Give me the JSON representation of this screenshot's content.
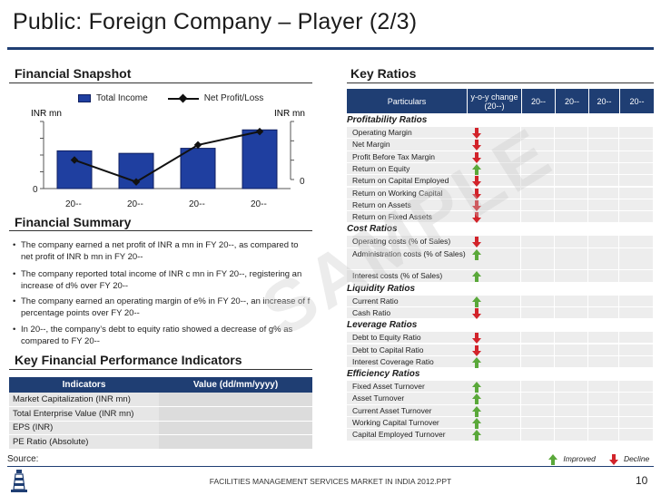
{
  "page": {
    "title": "Public: Foreign Company – Player (2/3)",
    "watermark": "SAMPLE",
    "source_label": "Source:",
    "footer": "FACILITIES MANAGEMENT SERVICES MARKET IN INDIA 2012.PPT",
    "page_number": "10"
  },
  "financial_snapshot": {
    "heading": "Financial Snapshot",
    "chart_data": {
      "type": "bar",
      "title": "",
      "categories": [
        "20--",
        "20--",
        "20--",
        "20--"
      ],
      "series": [
        {
          "name": "Total Income",
          "type": "bar",
          "values": [
            4.5,
            4.2,
            4.8,
            7.0
          ]
        },
        {
          "name": "Net Profit/Loss",
          "type": "line",
          "values": [
            1.2,
            -0.1,
            2.1,
            2.9
          ]
        }
      ],
      "ylabel_left": "INR mn",
      "ylabel_right": "INR mn",
      "left_tick_label": "0",
      "right_tick_label": "0",
      "ylim_left": [
        0,
        8
      ],
      "ylim_right": [
        -0.5,
        3.5
      ],
      "legend": "top",
      "grid": false,
      "colors": {
        "bar": "#1f3fa0",
        "line": "#111111"
      }
    }
  },
  "financial_summary": {
    "heading": "Financial Summary",
    "bullets": [
      "The company earned a net profit of INR a mn in FY 20--, as compared to net profit of INR b mn in FY 20--",
      "The company reported total income of INR c mn in FY 20--, registering an increase of d% over FY 20--",
      "The company earned an operating margin of e% in FY 20--, an increase of f percentage points over FY 20--",
      "In 20--, the company’s debt to equity ratio showed a decrease of g% as compared to FY 20--"
    ]
  },
  "kpi": {
    "heading": "Key Financial Performance Indicators",
    "col_indicators": "Indicators",
    "col_value": "Value (dd/mm/yyyy)",
    "rows": [
      "Market Capitalization (INR mn)",
      "Total Enterprise Value (INR mn)",
      "EPS (INR)",
      "PE Ratio (Absolute)"
    ]
  },
  "key_ratios": {
    "heading": "Key Ratios",
    "header": {
      "particulars": "Particulars",
      "yoy": "y-o-y change (20--)",
      "years": [
        "20--",
        "20--",
        "20--",
        "20--"
      ]
    },
    "groups": [
      {
        "category": "Profitability Ratios",
        "rows": [
          {
            "label": "Operating Margin",
            "trend": "decline"
          },
          {
            "label": "Net Margin",
            "trend": "decline"
          },
          {
            "label": "Profit Before Tax Margin",
            "trend": "decline"
          },
          {
            "label": "Return on Equity",
            "trend": "improved"
          },
          {
            "label": "Return on Capital Employed",
            "trend": "decline"
          },
          {
            "label": "Return on Working Capital",
            "trend": "decline"
          },
          {
            "label": "Return on Assets",
            "trend": "decline"
          },
          {
            "label": "Return on Fixed Assets",
            "trend": "decline"
          }
        ]
      },
      {
        "category": "Cost Ratios",
        "rows": [
          {
            "label": "Operating costs (% of Sales)",
            "trend": "decline"
          },
          {
            "label": "Administration costs (% of Sales)",
            "trend": "improved"
          },
          {
            "label": "Interest costs (% of Sales)",
            "trend": "improved"
          }
        ]
      },
      {
        "category": "Liquidity Ratios",
        "rows": [
          {
            "label": "Current Ratio",
            "trend": "improved"
          },
          {
            "label": "Cash Ratio",
            "trend": "decline"
          }
        ]
      },
      {
        "category": "Leverage Ratios",
        "rows": [
          {
            "label": "Debt to Equity Ratio",
            "trend": "decline"
          },
          {
            "label": "Debt to Capital Ratio",
            "trend": "decline"
          },
          {
            "label": "Interest Coverage Ratio",
            "trend": "improved"
          }
        ]
      },
      {
        "category": "Efficiency Ratios",
        "rows": [
          {
            "label": "Fixed Asset Turnover",
            "trend": "improved"
          },
          {
            "label": "Asset Turnover",
            "trend": "improved"
          },
          {
            "label": "Current Asset Turnover",
            "trend": "improved"
          },
          {
            "label": "Working Capital Turnover",
            "trend": "improved"
          },
          {
            "label": "Capital Employed Turnover",
            "trend": "improved"
          }
        ]
      }
    ],
    "legend": {
      "improved": "Improved",
      "decline": "Decline"
    },
    "colors": {
      "improved": "#5aa83a",
      "decline": "#d2232a",
      "header": "#1f3e73"
    }
  }
}
